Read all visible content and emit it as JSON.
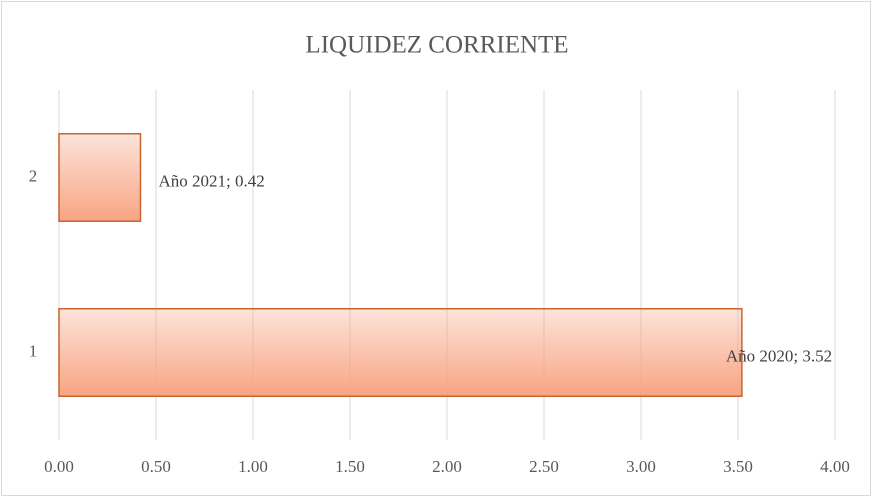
{
  "chart_data": {
    "type": "bar",
    "orientation": "horizontal",
    "title": "LIQUIDEZ CORRIENTE",
    "categories": [
      "1",
      "2"
    ],
    "values": [
      3.52,
      0.42
    ],
    "value_labels": [
      "Año 2020; 3.52",
      "Año 2021; 0.42"
    ],
    "color": "#f8a483",
    "xlim": [
      0,
      4
    ],
    "xticks": [
      {
        "value": 0,
        "label": "0.00"
      },
      {
        "value": 0.5,
        "label": "0.50"
      },
      {
        "value": 1,
        "label": "1.00"
      },
      {
        "value": 1.5,
        "label": "1.50"
      },
      {
        "value": 2,
        "label": "2.00"
      },
      {
        "value": 2.5,
        "label": "2.50"
      },
      {
        "value": 3,
        "label": "3.00"
      },
      {
        "value": 3.5,
        "label": "3.50"
      },
      {
        "value": 4,
        "label": "4.00"
      }
    ],
    "grid": true
  }
}
